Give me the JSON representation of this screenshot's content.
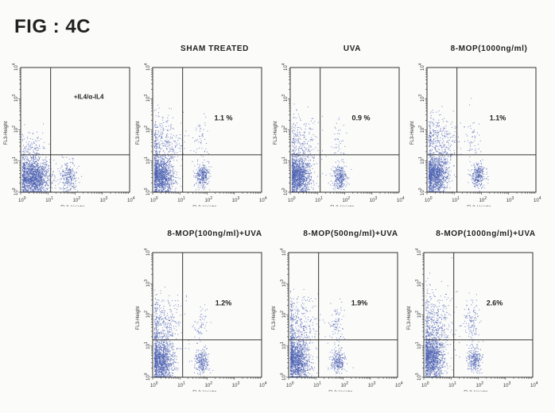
{
  "figure_title": "FIG : 4C",
  "chart_data": {
    "type": "scatter",
    "subtype": "flow-cytometry-quadrant-dot-plot",
    "x_axis": {
      "label": "FL3-Height",
      "scale": "log",
      "range": [
        1,
        10000
      ],
      "ticks": [
        "10",
        "10",
        "10",
        "10",
        "10"
      ],
      "tick_exponents": [
        "0",
        "1",
        "2",
        "3",
        "4"
      ]
    },
    "y_axis": {
      "label": "FL3-Height",
      "scale": "log",
      "range": [
        1,
        10000
      ]
    },
    "gate_log10": {
      "x": 1.1,
      "y": 1.2
    },
    "point_color": "#4a5fb0",
    "panels": [
      {
        "title": "",
        "inset_label": "+IL4/α-IL4",
        "percent": "",
        "clusters": [
          [
            0.45,
            0.45,
            0.3,
            0.3,
            1500
          ],
          [
            1.75,
            0.5,
            0.15,
            0.25,
            260
          ],
          [
            0.4,
            1.2,
            0.3,
            0.4,
            200
          ]
        ]
      },
      {
        "title": "SHAM TREATED",
        "inset_label": "",
        "percent": "1.1 %",
        "clusters": [
          [
            0.3,
            0.5,
            0.22,
            0.3,
            1200
          ],
          [
            1.8,
            0.55,
            0.13,
            0.18,
            300
          ],
          [
            0.4,
            1.6,
            0.35,
            0.45,
            350
          ],
          [
            1.75,
            1.7,
            0.15,
            0.35,
            50
          ]
        ]
      },
      {
        "title": "UVA",
        "inset_label": "",
        "percent": "0.9 %",
        "clusters": [
          [
            0.3,
            0.5,
            0.22,
            0.3,
            1200
          ],
          [
            1.8,
            0.5,
            0.13,
            0.2,
            300
          ],
          [
            0.35,
            1.5,
            0.35,
            0.45,
            300
          ],
          [
            1.75,
            1.6,
            0.15,
            0.35,
            40
          ]
        ]
      },
      {
        "title": "8-MOP(1000ng/ml)",
        "inset_label": "",
        "percent": "1.1%",
        "clusters": [
          [
            0.3,
            0.55,
            0.22,
            0.3,
            1200
          ],
          [
            1.85,
            0.55,
            0.13,
            0.2,
            300
          ],
          [
            0.4,
            1.6,
            0.35,
            0.45,
            380
          ],
          [
            1.7,
            1.7,
            0.15,
            0.35,
            50
          ]
        ]
      },
      {
        "title": "8-MOP(100ng/ml)+UVA",
        "inset_label": "",
        "percent": "1.2%",
        "clusters": [
          [
            0.3,
            0.5,
            0.22,
            0.35,
            1200
          ],
          [
            1.8,
            0.5,
            0.13,
            0.2,
            250
          ],
          [
            0.35,
            1.6,
            0.35,
            0.5,
            400
          ],
          [
            1.75,
            1.7,
            0.15,
            0.35,
            60
          ]
        ]
      },
      {
        "title": "8-MOP(500ng/ml)+UVA",
        "inset_label": "",
        "percent": "1.9%",
        "clusters": [
          [
            0.3,
            0.5,
            0.22,
            0.35,
            1200
          ],
          [
            1.8,
            0.5,
            0.13,
            0.2,
            250
          ],
          [
            0.35,
            1.6,
            0.35,
            0.5,
            400
          ],
          [
            1.75,
            1.7,
            0.15,
            0.35,
            90
          ]
        ]
      },
      {
        "title": "8-MOP(1000ng/ml)+UVA",
        "inset_label": "",
        "percent": "2.6%",
        "clusters": [
          [
            0.3,
            0.6,
            0.22,
            0.35,
            1200
          ],
          [
            1.85,
            0.6,
            0.13,
            0.2,
            250
          ],
          [
            0.35,
            1.7,
            0.35,
            0.5,
            450
          ],
          [
            1.75,
            1.8,
            0.15,
            0.35,
            120
          ]
        ]
      }
    ]
  }
}
